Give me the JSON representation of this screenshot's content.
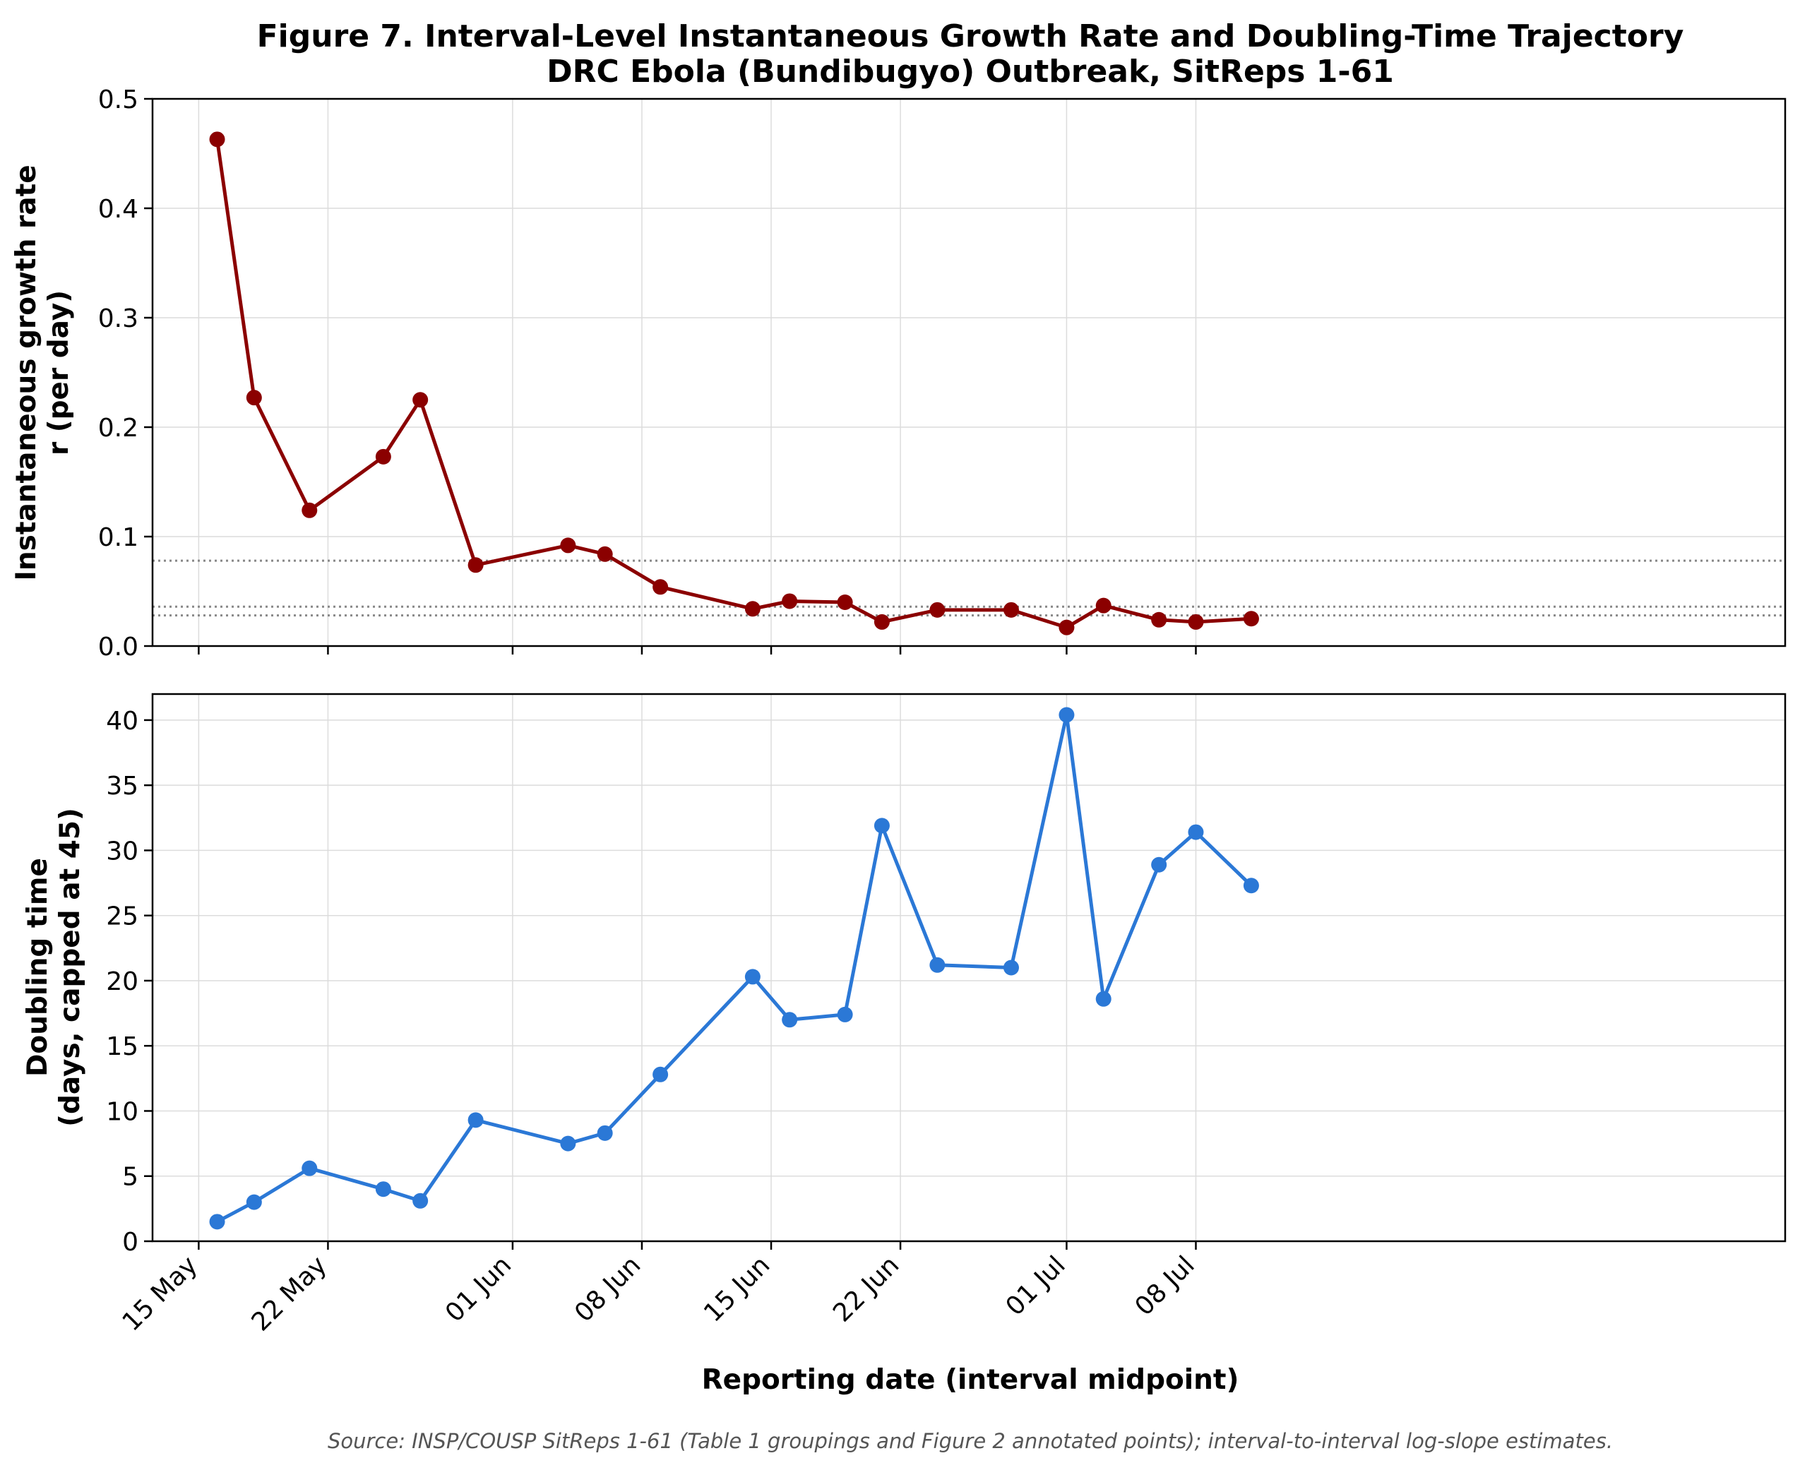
{
  "figure": {
    "title_line1": "Figure 7. Interval-Level Instantaneous Growth Rate and Doubling-Time Trajectory",
    "title_line2": "DRC Ebola (Bundibugyo) Outbreak, SitReps 1-61",
    "source": "Source: INSP/COUSP SitReps 1-61 (Table 1 groupings and Figure 2 annotated points); interval-to-interval log-slope estimates."
  },
  "chart_data": [
    {
      "type": "line",
      "panel": "top",
      "ylabel_line1": "Instantaneous growth rate",
      "ylabel_line2": "r (per day)",
      "xlabel": "",
      "ylim": [
        0,
        0.5
      ],
      "yticks": [
        0.0,
        0.1,
        0.2,
        0.3,
        0.4,
        0.5
      ],
      "ytick_labels": [
        "0.0",
        "0.1",
        "0.2",
        "0.3",
        "0.4",
        "0.5"
      ],
      "xticks": [
        "2025-05-15",
        "2025-05-22",
        "2025-06-01",
        "2025-06-08",
        "2025-06-15",
        "2025-06-22",
        "2025-07-01",
        "2025-07-08"
      ],
      "grid": true,
      "color": "#8b0000",
      "reference_lines": [
        0.078,
        0.036,
        0.028
      ],
      "x": [
        "2025-05-16",
        "2025-05-18",
        "2025-05-21",
        "2025-05-25",
        "2025-05-27",
        "2025-05-30",
        "2025-06-04",
        "2025-06-06",
        "2025-06-09",
        "2025-06-14",
        "2025-06-16",
        "2025-06-19",
        "2025-06-21",
        "2025-06-24",
        "2025-06-28",
        "2025-07-01",
        "2025-07-03",
        "2025-07-06",
        "2025-07-08",
        "2025-07-11"
      ],
      "values": [
        0.463,
        0.227,
        0.124,
        0.173,
        0.225,
        0.074,
        0.092,
        0.084,
        0.054,
        0.034,
        0.041,
        0.04,
        0.022,
        0.033,
        0.033,
        0.017,
        0.037,
        0.024,
        0.022,
        0.025
      ]
    },
    {
      "type": "line",
      "panel": "bottom",
      "ylabel_line1": "Doubling time",
      "ylabel_line2": "(days, capped at 45)",
      "xlabel": "Reporting date (interval midpoint)",
      "ylim": [
        0,
        42
      ],
      "yticks": [
        0,
        5,
        10,
        15,
        20,
        25,
        30,
        35,
        40
      ],
      "ytick_labels": [
        "0",
        "5",
        "10",
        "15",
        "20",
        "25",
        "30",
        "35",
        "40"
      ],
      "xticks": [
        "2025-05-15",
        "2025-05-22",
        "2025-06-01",
        "2025-06-08",
        "2025-06-15",
        "2025-06-22",
        "2025-07-01",
        "2025-07-08"
      ],
      "xtick_labels": [
        "15 May",
        "22 May",
        "01 Jun",
        "08 Jun",
        "15 Jun",
        "22 Jun",
        "01 Jul",
        "08 Jul"
      ],
      "grid": true,
      "color": "#2b78d6",
      "x": [
        "2025-05-16",
        "2025-05-18",
        "2025-05-21",
        "2025-05-25",
        "2025-05-27",
        "2025-05-30",
        "2025-06-04",
        "2025-06-06",
        "2025-06-09",
        "2025-06-14",
        "2025-06-16",
        "2025-06-19",
        "2025-06-21",
        "2025-06-24",
        "2025-06-28",
        "2025-07-01",
        "2025-07-03",
        "2025-07-06",
        "2025-07-08",
        "2025-07-11"
      ],
      "values": [
        1.5,
        3.0,
        5.6,
        4.0,
        3.1,
        9.3,
        7.5,
        8.3,
        12.8,
        20.3,
        17.0,
        17.4,
        31.9,
        21.2,
        21.0,
        40.4,
        18.6,
        28.9,
        31.4,
        27.3
      ]
    }
  ]
}
